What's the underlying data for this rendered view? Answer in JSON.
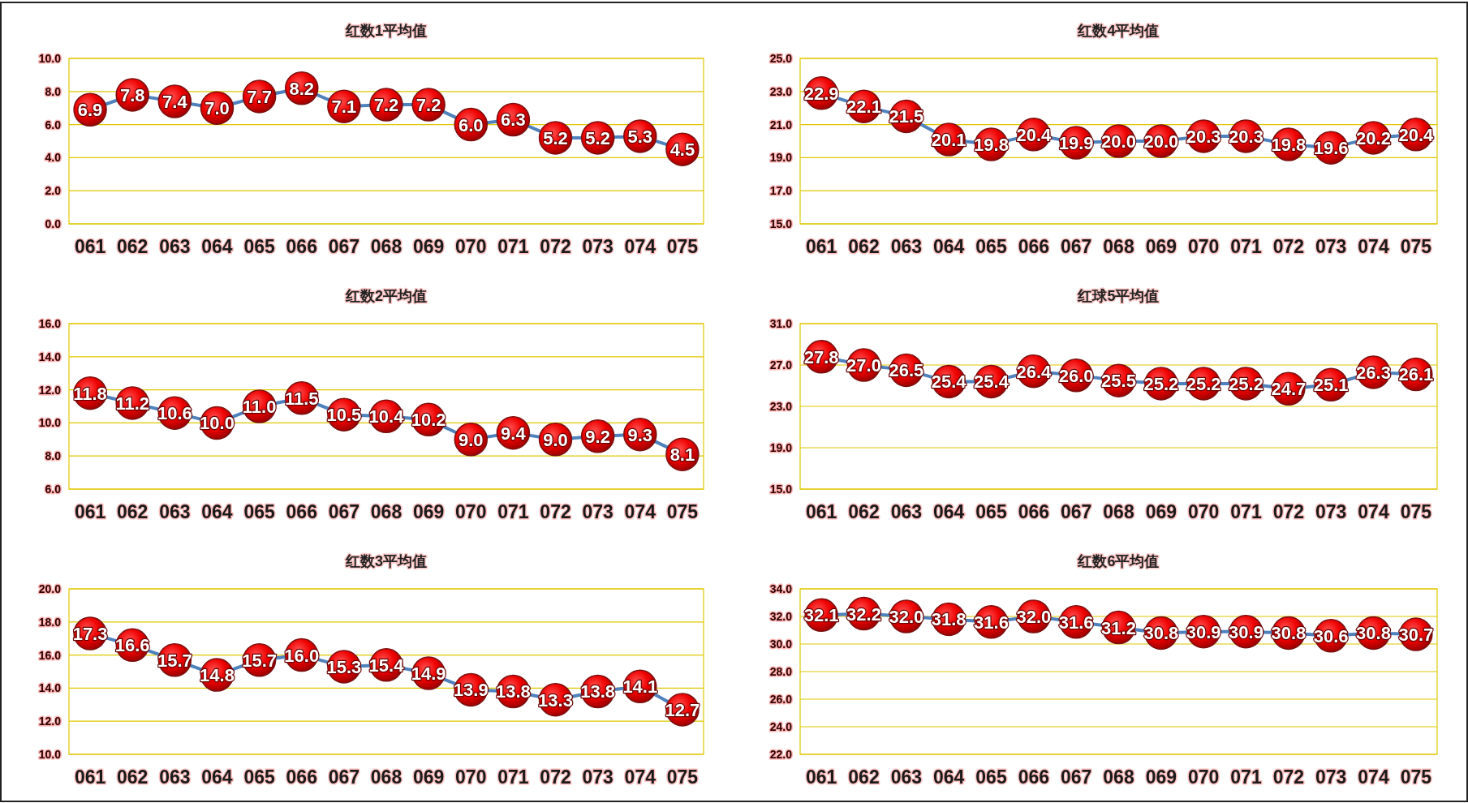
{
  "chart_data": [
    {
      "type": "line",
      "title": "红数1平均值",
      "categories": [
        "061",
        "062",
        "063",
        "064",
        "065",
        "066",
        "067",
        "068",
        "069",
        "070",
        "071",
        "072",
        "073",
        "074",
        "075"
      ],
      "series": [
        {
          "color": "#4f81bd",
          "values": [
            6.9,
            7.8,
            7.4,
            7.0,
            7.7,
            8.2,
            7.1,
            7.2,
            7.2,
            6.0,
            6.3,
            5.2,
            5.2,
            5.3,
            4.5
          ],
          "value_labels": [
            "6.9",
            "7.8",
            "7.4",
            "7.0",
            "7.7",
            "8.2",
            "7.1",
            "7.2",
            "7.2",
            "6.0",
            "6.3",
            "5.2",
            "5.2",
            "5.3",
            "4.5"
          ]
        }
      ],
      "ylim": [
        0,
        10
      ],
      "yticks": [
        {
          "value": 0,
          "label": "0.0"
        },
        {
          "value": 2,
          "label": "2.0"
        },
        {
          "value": 4,
          "label": "4.0"
        },
        {
          "value": 6,
          "label": "6.0"
        },
        {
          "value": 8,
          "label": "8.0"
        },
        {
          "value": 10,
          "label": "10.0"
        }
      ],
      "grid": "y",
      "marker": "circle"
    },
    {
      "type": "line",
      "title": "红数4平均值",
      "categories": [
        "061",
        "062",
        "063",
        "064",
        "065",
        "066",
        "067",
        "068",
        "069",
        "070",
        "071",
        "072",
        "073",
        "074",
        "075"
      ],
      "series": [
        {
          "color": "#4f81bd",
          "values": [
            22.9,
            22.1,
            21.5,
            20.1,
            19.8,
            20.4,
            19.9,
            20.0,
            20.0,
            20.3,
            20.3,
            19.8,
            19.6,
            20.2,
            20.4
          ],
          "value_labels": [
            "22.9",
            "22.1",
            "21.5",
            "20.1",
            "19.8",
            "20.4",
            "19.9",
            "20.0",
            "20.0",
            "20.3",
            "20.3",
            "19.8",
            "19.6",
            "20.2",
            "20.4"
          ]
        }
      ],
      "ylim": [
        15,
        25
      ],
      "yticks": [
        {
          "value": 15,
          "label": "15.0"
        },
        {
          "value": 17,
          "label": "17.0"
        },
        {
          "value": 19,
          "label": "19.0"
        },
        {
          "value": 21,
          "label": "21.0"
        },
        {
          "value": 23,
          "label": "23.0"
        },
        {
          "value": 25,
          "label": "25.0"
        }
      ],
      "grid": "y",
      "marker": "circle"
    },
    {
      "type": "line",
      "title": "红数2平均值",
      "categories": [
        "061",
        "062",
        "063",
        "064",
        "065",
        "066",
        "067",
        "068",
        "069",
        "070",
        "071",
        "072",
        "073",
        "074",
        "075"
      ],
      "series": [
        {
          "color": "#4f81bd",
          "values": [
            11.8,
            11.2,
            10.6,
            10.0,
            11.0,
            11.5,
            10.5,
            10.4,
            10.2,
            9.0,
            9.4,
            9.0,
            9.2,
            9.3,
            8.1
          ],
          "value_labels": [
            "11.8",
            "11.2",
            "10.6",
            "10.0",
            "11.0",
            "11.5",
            "10.5",
            "10.4",
            "10.2",
            "9.0",
            "9.4",
            "9.0",
            "9.2",
            "9.3",
            "8.1"
          ]
        }
      ],
      "ylim": [
        6,
        16
      ],
      "yticks": [
        {
          "value": 6,
          "label": "6.0"
        },
        {
          "value": 8,
          "label": "8.0"
        },
        {
          "value": 10,
          "label": "10.0"
        },
        {
          "value": 12,
          "label": "12.0"
        },
        {
          "value": 14,
          "label": "14.0"
        },
        {
          "value": 16,
          "label": "16.0"
        }
      ],
      "grid": "y",
      "marker": "circle"
    },
    {
      "type": "line",
      "title": "红球5平均值",
      "categories": [
        "061",
        "062",
        "063",
        "064",
        "065",
        "066",
        "067",
        "068",
        "069",
        "070",
        "071",
        "072",
        "073",
        "074",
        "075"
      ],
      "series": [
        {
          "color": "#4f81bd",
          "values": [
            27.8,
            27.0,
            26.5,
            25.4,
            25.4,
            26.4,
            26.0,
            25.5,
            25.2,
            25.2,
            25.2,
            24.7,
            25.1,
            26.3,
            26.1
          ],
          "value_labels": [
            "27.8",
            "27.0",
            "26.5",
            "25.4",
            "25.4",
            "26.4",
            "26.0",
            "25.5",
            "25.2",
            "25.2",
            "25.2",
            "24.7",
            "25.1",
            "26.3",
            "26.1"
          ]
        }
      ],
      "ylim": [
        15,
        31
      ],
      "yticks": [
        {
          "value": 15,
          "label": "15.0"
        },
        {
          "value": 19,
          "label": "19.0"
        },
        {
          "value": 23,
          "label": "23.0"
        },
        {
          "value": 27,
          "label": "27.0"
        },
        {
          "value": 31,
          "label": "31.0"
        }
      ],
      "grid": "y",
      "marker": "circle"
    },
    {
      "type": "line",
      "title": "红数3平均值",
      "categories": [
        "061",
        "062",
        "063",
        "064",
        "065",
        "066",
        "067",
        "068",
        "069",
        "070",
        "071",
        "072",
        "073",
        "074",
        "075"
      ],
      "series": [
        {
          "color": "#4f81bd",
          "values": [
            17.3,
            16.6,
            15.7,
            14.8,
            15.7,
            16.0,
            15.3,
            15.4,
            14.9,
            13.9,
            13.8,
            13.3,
            13.8,
            14.1,
            12.7
          ],
          "value_labels": [
            "17.3",
            "16.6",
            "15.7",
            "14.8",
            "15.7",
            "16.0",
            "15.3",
            "15.4",
            "14.9",
            "13.9",
            "13.8",
            "13.3",
            "13.8",
            "14.1",
            "12.7"
          ]
        }
      ],
      "ylim": [
        10,
        20
      ],
      "yticks": [
        {
          "value": 10,
          "label": "10.0"
        },
        {
          "value": 12,
          "label": "12.0"
        },
        {
          "value": 14,
          "label": "14.0"
        },
        {
          "value": 16,
          "label": "16.0"
        },
        {
          "value": 18,
          "label": "18.0"
        },
        {
          "value": 20,
          "label": "20.0"
        }
      ],
      "grid": "y",
      "marker": "circle"
    },
    {
      "type": "line",
      "title": "红数6平均值",
      "categories": [
        "061",
        "062",
        "063",
        "064",
        "065",
        "066",
        "067",
        "068",
        "069",
        "070",
        "071",
        "072",
        "073",
        "074",
        "075"
      ],
      "series": [
        {
          "color": "#4f81bd",
          "values": [
            32.1,
            32.2,
            32.0,
            31.8,
            31.6,
            32.0,
            31.6,
            31.2,
            30.8,
            30.9,
            30.9,
            30.8,
            30.6,
            30.8,
            30.7
          ],
          "value_labels": [
            "32.1",
            "32.2",
            "32.0",
            "31.8",
            "31.6",
            "32.0",
            "31.6",
            "31.2",
            "30.8",
            "30.9",
            "30.9",
            "30.8",
            "30.6",
            "30.8",
            "30.7"
          ]
        }
      ],
      "ylim": [
        22,
        34
      ],
      "yticks": [
        {
          "value": 22,
          "label": "22.0"
        },
        {
          "value": 24,
          "label": "24.0"
        },
        {
          "value": 26,
          "label": "26.0"
        },
        {
          "value": 28,
          "label": "28.0"
        },
        {
          "value": 30,
          "label": "30.0"
        },
        {
          "value": 32,
          "label": "32.0"
        },
        {
          "value": 34,
          "label": "34.0"
        }
      ],
      "grid": "y",
      "marker": "circle"
    }
  ]
}
